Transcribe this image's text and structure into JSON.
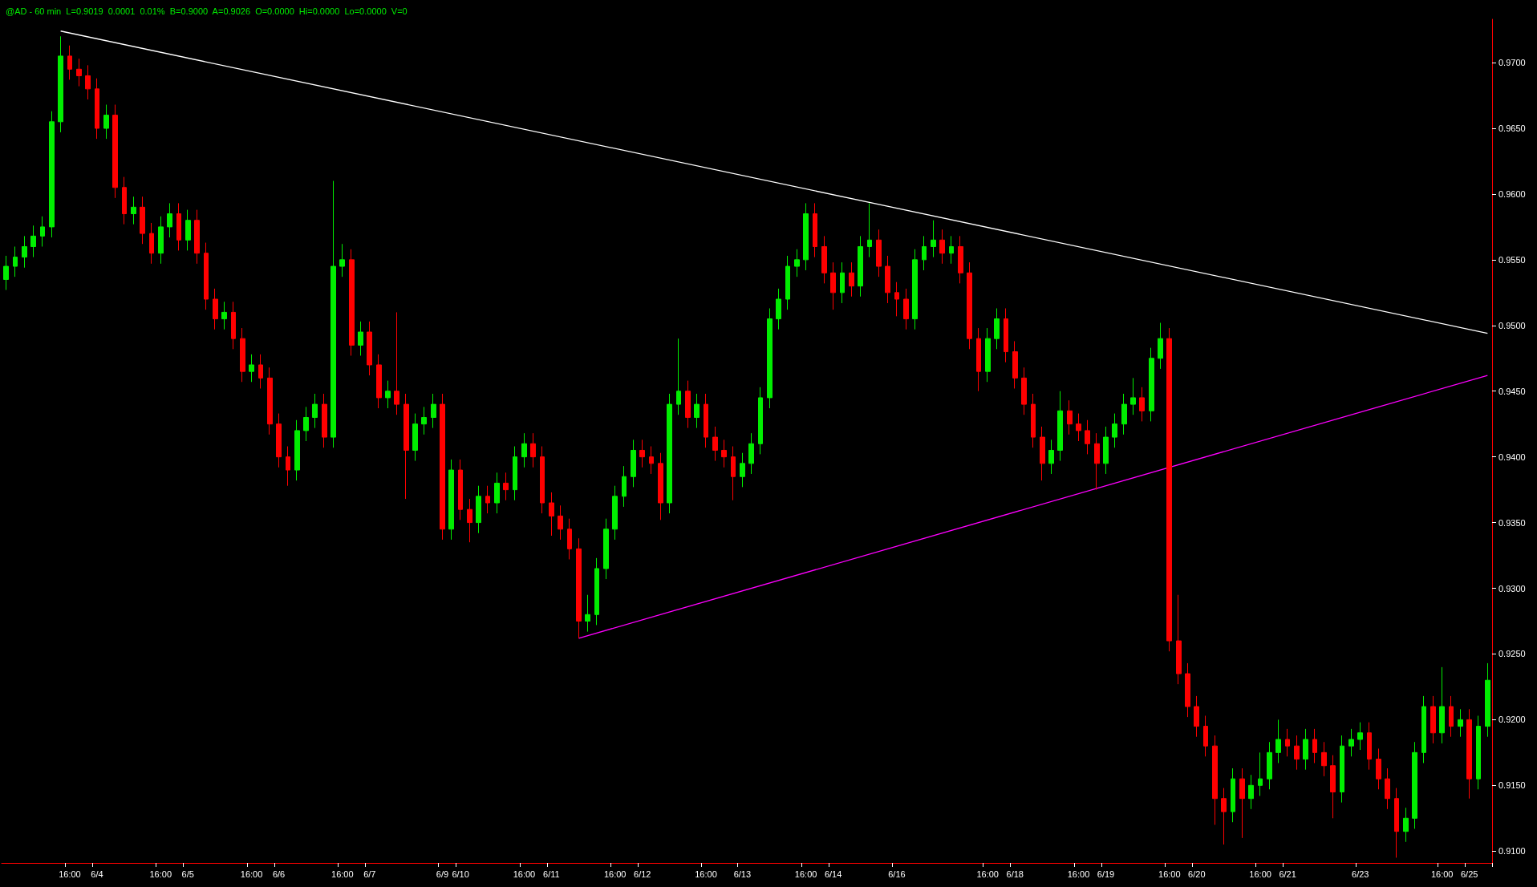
{
  "chart_data": {
    "type": "candlestick",
    "title": "@AD - 60 min  L=0.9019  0.0001  0.01%  B=0.9000  A=0.9026  O=0.0000  Hi=0.0000  Lo=0.0000  V=0",
    "categories": [
      null,
      null,
      null,
      null,
      null,
      null,
      null,
      "16:00",
      null,
      null,
      "6/4",
      null,
      null,
      null,
      null,
      null,
      null,
      "16:00",
      null,
      null,
      "6/5",
      null,
      null,
      null,
      null,
      null,
      null,
      "16:00",
      null,
      null,
      "6/6",
      null,
      null,
      null,
      null,
      null,
      null,
      "16:00",
      null,
      null,
      "6/7",
      null,
      null,
      null,
      null,
      null,
      null,
      null,
      "6/9",
      null,
      "6/10",
      null,
      null,
      null,
      null,
      null,
      null,
      "16:00",
      null,
      null,
      "6/11",
      null,
      null,
      null,
      null,
      null,
      null,
      "16:00",
      null,
      null,
      "6/12",
      null,
      null,
      null,
      null,
      null,
      null,
      "16:00",
      null,
      null,
      null,
      "6/13",
      null,
      null,
      null,
      null,
      null,
      null,
      "16:00",
      null,
      null,
      "6/14",
      null,
      null,
      null,
      null,
      null,
      null,
      "6/16",
      null,
      null,
      null,
      null,
      null,
      null,
      null,
      null,
      null,
      "16:00",
      null,
      null,
      "6/18",
      null,
      null,
      null,
      null,
      null,
      null,
      "16:00",
      null,
      null,
      "6/19",
      null,
      null,
      null,
      null,
      null,
      null,
      "16:00",
      null,
      null,
      "6/20",
      null,
      null,
      null,
      null,
      null,
      null,
      "16:00",
      null,
      null,
      "6/21",
      null,
      null,
      null,
      null,
      null,
      null,
      null,
      "6/23",
      null,
      null,
      null,
      null,
      null,
      null,
      null,
      null,
      "16:00",
      null,
      null,
      "6/25",
      null,
      null
    ],
    "ohlc": [
      [
        0.9535,
        0.9553,
        0.9527,
        0.9545
      ],
      [
        0.9545,
        0.956,
        0.9537,
        0.9552
      ],
      [
        0.9552,
        0.9568,
        0.9544,
        0.956
      ],
      [
        0.956,
        0.9576,
        0.9552,
        0.9568
      ],
      [
        0.9568,
        0.9583,
        0.956,
        0.9575
      ],
      [
        0.9575,
        0.9663,
        0.9567,
        0.9655
      ],
      [
        0.9655,
        0.972,
        0.9647,
        0.9705
      ],
      [
        0.9705,
        0.9713,
        0.9687,
        0.9695
      ],
      [
        0.9695,
        0.9703,
        0.9682,
        0.969
      ],
      [
        0.969,
        0.9698,
        0.9672,
        0.968
      ],
      [
        0.968,
        0.9688,
        0.9642,
        0.965
      ],
      [
        0.965,
        0.9668,
        0.9642,
        0.966
      ],
      [
        0.966,
        0.9668,
        0.9597,
        0.9605
      ],
      [
        0.9605,
        0.9613,
        0.9577,
        0.9585
      ],
      [
        0.9585,
        0.9598,
        0.9577,
        0.959
      ],
      [
        0.959,
        0.9598,
        0.9562,
        0.957
      ],
      [
        0.957,
        0.9578,
        0.9547,
        0.9555
      ],
      [
        0.9555,
        0.9583,
        0.9547,
        0.9575
      ],
      [
        0.9575,
        0.9593,
        0.9567,
        0.9585
      ],
      [
        0.9585,
        0.9593,
        0.9557,
        0.9565
      ],
      [
        0.9565,
        0.9588,
        0.9557,
        0.958
      ],
      [
        0.958,
        0.9588,
        0.9547,
        0.9555
      ],
      [
        0.9555,
        0.9563,
        0.9512,
        0.952
      ],
      [
        0.952,
        0.9528,
        0.9497,
        0.9505
      ],
      [
        0.9505,
        0.9518,
        0.9497,
        0.951
      ],
      [
        0.951,
        0.9518,
        0.9482,
        0.949
      ],
      [
        0.949,
        0.9498,
        0.9457,
        0.9465
      ],
      [
        0.9465,
        0.9478,
        0.9457,
        0.947
      ],
      [
        0.947,
        0.9478,
        0.9452,
        0.946
      ],
      [
        0.946,
        0.9468,
        0.9417,
        0.9425
      ],
      [
        0.9425,
        0.9433,
        0.9392,
        0.94
      ],
      [
        0.94,
        0.9408,
        0.9378,
        0.939
      ],
      [
        0.939,
        0.9428,
        0.9382,
        0.942
      ],
      [
        0.942,
        0.9438,
        0.9412,
        0.943
      ],
      [
        0.943,
        0.9448,
        0.9422,
        0.944
      ],
      [
        0.944,
        0.9448,
        0.9407,
        0.9415
      ],
      [
        0.9415,
        0.961,
        0.9407,
        0.9545
      ],
      [
        0.9545,
        0.9562,
        0.9537,
        0.955
      ],
      [
        0.955,
        0.9558,
        0.9477,
        0.9485
      ],
      [
        0.9485,
        0.9503,
        0.9477,
        0.9495
      ],
      [
        0.9495,
        0.9503,
        0.9462,
        0.947
      ],
      [
        0.947,
        0.9478,
        0.9437,
        0.9445
      ],
      [
        0.9445,
        0.9458,
        0.9437,
        0.945
      ],
      [
        0.945,
        0.951,
        0.9432,
        0.944
      ],
      [
        0.944,
        0.9448,
        0.9368,
        0.9405
      ],
      [
        0.9405,
        0.9433,
        0.9397,
        0.9425
      ],
      [
        0.9425,
        0.9438,
        0.9417,
        0.943
      ],
      [
        0.943,
        0.9448,
        0.9422,
        0.944
      ],
      [
        0.944,
        0.9448,
        0.9337,
        0.9345
      ],
      [
        0.9345,
        0.9398,
        0.9337,
        0.939
      ],
      [
        0.939,
        0.9398,
        0.9352,
        0.936
      ],
      [
        0.936,
        0.9368,
        0.9335,
        0.935
      ],
      [
        0.935,
        0.9378,
        0.9342,
        0.937
      ],
      [
        0.937,
        0.9378,
        0.9357,
        0.9365
      ],
      [
        0.9365,
        0.9388,
        0.9357,
        0.938
      ],
      [
        0.938,
        0.9388,
        0.9367,
        0.9375
      ],
      [
        0.9375,
        0.9408,
        0.9367,
        0.94
      ],
      [
        0.94,
        0.9418,
        0.9392,
        0.941
      ],
      [
        0.941,
        0.9418,
        0.9392,
        0.94
      ],
      [
        0.94,
        0.9408,
        0.9357,
        0.9365
      ],
      [
        0.9365,
        0.9373,
        0.934,
        0.9355
      ],
      [
        0.9355,
        0.9363,
        0.9337,
        0.9345
      ],
      [
        0.9345,
        0.9353,
        0.9322,
        0.933
      ],
      [
        0.933,
        0.9338,
        0.9262,
        0.9275
      ],
      [
        0.9275,
        0.9295,
        0.9267,
        0.928
      ],
      [
        0.928,
        0.9323,
        0.9272,
        0.9315
      ],
      [
        0.9315,
        0.9353,
        0.9307,
        0.9345
      ],
      [
        0.9345,
        0.9378,
        0.9337,
        0.937
      ],
      [
        0.937,
        0.9393,
        0.9362,
        0.9385
      ],
      [
        0.9385,
        0.9413,
        0.9377,
        0.9405
      ],
      [
        0.9405,
        0.9413,
        0.9392,
        0.94
      ],
      [
        0.94,
        0.9408,
        0.9387,
        0.9395
      ],
      [
        0.9395,
        0.9403,
        0.9352,
        0.9365
      ],
      [
        0.9365,
        0.9448,
        0.9357,
        0.944
      ],
      [
        0.944,
        0.949,
        0.9432,
        0.945
      ],
      [
        0.945,
        0.9458,
        0.9422,
        0.943
      ],
      [
        0.943,
        0.9448,
        0.9422,
        0.944
      ],
      [
        0.944,
        0.9448,
        0.9407,
        0.9415
      ],
      [
        0.9415,
        0.9423,
        0.9397,
        0.9405
      ],
      [
        0.9405,
        0.9413,
        0.9392,
        0.94
      ],
      [
        0.94,
        0.9408,
        0.9367,
        0.9385
      ],
      [
        0.9385,
        0.9403,
        0.9377,
        0.9395
      ],
      [
        0.9395,
        0.9418,
        0.9387,
        0.941
      ],
      [
        0.941,
        0.9453,
        0.9402,
        0.9445
      ],
      [
        0.9445,
        0.9513,
        0.9437,
        0.9505
      ],
      [
        0.9505,
        0.9528,
        0.9497,
        0.952
      ],
      [
        0.952,
        0.9553,
        0.9512,
        0.9545
      ],
      [
        0.9545,
        0.9558,
        0.9537,
        0.955
      ],
      [
        0.955,
        0.9593,
        0.9542,
        0.9585
      ],
      [
        0.9585,
        0.9593,
        0.9552,
        0.956
      ],
      [
        0.956,
        0.9568,
        0.9532,
        0.954
      ],
      [
        0.954,
        0.9548,
        0.9512,
        0.9525
      ],
      [
        0.9525,
        0.9548,
        0.9517,
        0.954
      ],
      [
        0.954,
        0.9548,
        0.9522,
        0.953
      ],
      [
        0.953,
        0.9568,
        0.9522,
        0.956
      ],
      [
        0.956,
        0.9593,
        0.9552,
        0.9565
      ],
      [
        0.9565,
        0.9573,
        0.9537,
        0.9545
      ],
      [
        0.9545,
        0.9553,
        0.9517,
        0.9525
      ],
      [
        0.9525,
        0.9533,
        0.9507,
        0.952
      ],
      [
        0.952,
        0.9528,
        0.9497,
        0.9505
      ],
      [
        0.9505,
        0.9558,
        0.9497,
        0.955
      ],
      [
        0.955,
        0.9568,
        0.9542,
        0.956
      ],
      [
        0.956,
        0.958,
        0.9552,
        0.9565
      ],
      [
        0.9565,
        0.9573,
        0.9547,
        0.9555
      ],
      [
        0.9555,
        0.9568,
        0.9547,
        0.956
      ],
      [
        0.956,
        0.9568,
        0.9532,
        0.954
      ],
      [
        0.954,
        0.9548,
        0.9482,
        0.949
      ],
      [
        0.949,
        0.9498,
        0.945,
        0.9465
      ],
      [
        0.9465,
        0.9498,
        0.9457,
        0.949
      ],
      [
        0.949,
        0.9513,
        0.9482,
        0.9505
      ],
      [
        0.9505,
        0.9513,
        0.9472,
        0.948
      ],
      [
        0.948,
        0.9488,
        0.9452,
        0.946
      ],
      [
        0.946,
        0.9468,
        0.9432,
        0.944
      ],
      [
        0.944,
        0.9448,
        0.9407,
        0.9415
      ],
      [
        0.9415,
        0.9423,
        0.9382,
        0.9395
      ],
      [
        0.9395,
        0.9413,
        0.9387,
        0.9405
      ],
      [
        0.9405,
        0.945,
        0.9397,
        0.9435
      ],
      [
        0.9435,
        0.9443,
        0.9417,
        0.9425
      ],
      [
        0.9425,
        0.9433,
        0.9412,
        0.942
      ],
      [
        0.942,
        0.9428,
        0.9402,
        0.941
      ],
      [
        0.941,
        0.9418,
        0.9375,
        0.9395
      ],
      [
        0.9395,
        0.9423,
        0.9387,
        0.9415
      ],
      [
        0.9415,
        0.9433,
        0.9407,
        0.9425
      ],
      [
        0.9425,
        0.9448,
        0.9417,
        0.944
      ],
      [
        0.944,
        0.946,
        0.9432,
        0.9445
      ],
      [
        0.9445,
        0.9453,
        0.9427,
        0.9435
      ],
      [
        0.9435,
        0.9483,
        0.9427,
        0.9475
      ],
      [
        0.9475,
        0.9502,
        0.9467,
        0.949
      ],
      [
        0.949,
        0.9498,
        0.9252,
        0.926
      ],
      [
        0.926,
        0.9295,
        0.9227,
        0.9235
      ],
      [
        0.9235,
        0.9243,
        0.9202,
        0.921
      ],
      [
        0.921,
        0.9218,
        0.9187,
        0.9195
      ],
      [
        0.9195,
        0.9203,
        0.9172,
        0.918
      ],
      [
        0.918,
        0.9188,
        0.912,
        0.914
      ],
      [
        0.914,
        0.9148,
        0.9105,
        0.913
      ],
      [
        0.913,
        0.9163,
        0.9122,
        0.9155
      ],
      [
        0.9155,
        0.9163,
        0.911,
        0.914
      ],
      [
        0.914,
        0.9158,
        0.9132,
        0.915
      ],
      [
        0.915,
        0.9175,
        0.9142,
        0.9155
      ],
      [
        0.9155,
        0.9183,
        0.9147,
        0.9175
      ],
      [
        0.9175,
        0.92,
        0.9167,
        0.9185
      ],
      [
        0.9185,
        0.9193,
        0.9172,
        0.918
      ],
      [
        0.918,
        0.9188,
        0.9162,
        0.917
      ],
      [
        0.917,
        0.9193,
        0.9162,
        0.9185
      ],
      [
        0.9185,
        0.9193,
        0.9167,
        0.9175
      ],
      [
        0.9175,
        0.9183,
        0.9157,
        0.9165
      ],
      [
        0.9165,
        0.9173,
        0.9125,
        0.9145
      ],
      [
        0.9145,
        0.9188,
        0.9137,
        0.918
      ],
      [
        0.918,
        0.9193,
        0.9172,
        0.9185
      ],
      [
        0.9185,
        0.9198,
        0.9177,
        0.919
      ],
      [
        0.919,
        0.9198,
        0.9162,
        0.917
      ],
      [
        0.917,
        0.9178,
        0.9147,
        0.9155
      ],
      [
        0.9155,
        0.9163,
        0.9132,
        0.914
      ],
      [
        0.914,
        0.9148,
        0.9095,
        0.9115
      ],
      [
        0.9115,
        0.9133,
        0.9107,
        0.9125
      ],
      [
        0.9125,
        0.9183,
        0.9117,
        0.9175
      ],
      [
        0.9175,
        0.9218,
        0.9167,
        0.921
      ],
      [
        0.921,
        0.9218,
        0.9182,
        0.919
      ],
      [
        0.919,
        0.924,
        0.9182,
        0.921
      ],
      [
        0.921,
        0.9218,
        0.9187,
        0.9195
      ],
      [
        0.9195,
        0.9208,
        0.9187,
        0.92
      ],
      [
        0.92,
        0.9208,
        0.914,
        0.9155
      ],
      [
        0.9155,
        0.9203,
        0.9147,
        0.9195
      ],
      [
        0.9195,
        0.9243,
        0.9187,
        0.923
      ]
    ],
    "series": [
      {
        "type": "line",
        "color": "#ffffff",
        "values": [
          null,
          null,
          null,
          null,
          null,
          null,
          0.9724,
          null,
          null,
          null,
          null,
          null,
          null,
          null,
          null,
          null,
          null,
          null,
          null,
          null,
          null,
          null,
          null,
          null,
          null,
          null,
          null,
          null,
          null,
          null,
          null,
          null,
          null,
          null,
          null,
          null,
          null,
          null,
          null,
          null,
          null,
          null,
          null,
          null,
          null,
          null,
          null,
          null,
          null,
          null,
          null,
          null,
          null,
          null,
          null,
          null,
          null,
          null,
          null,
          null,
          null,
          null,
          null,
          null,
          null,
          null,
          null,
          null,
          null,
          null,
          null,
          null,
          null,
          null,
          null,
          null,
          null,
          null,
          null,
          null,
          null,
          null,
          null,
          null,
          null,
          null,
          null,
          null,
          null,
          null,
          null,
          null,
          null,
          null,
          null,
          null,
          null,
          null,
          null,
          null,
          null,
          null,
          null,
          null,
          null,
          null,
          null,
          null,
          null,
          null,
          null,
          null,
          null,
          null,
          null,
          null,
          null,
          null,
          null,
          null,
          null,
          null,
          null,
          null,
          null,
          null,
          null,
          null,
          null,
          null,
          null,
          null,
          null,
          null,
          null,
          null,
          null,
          null,
          null,
          null,
          null,
          null,
          null,
          null,
          null,
          null,
          null,
          null,
          null,
          null,
          null,
          null,
          null,
          null,
          null,
          null,
          null,
          null,
          null,
          null,
          null,
          null,
          null,
          0.9494
        ]
      },
      {
        "type": "line",
        "color": "#ff00ff",
        "values": [
          null,
          null,
          null,
          null,
          null,
          null,
          null,
          null,
          null,
          null,
          null,
          null,
          null,
          null,
          null,
          null,
          null,
          null,
          null,
          null,
          null,
          null,
          null,
          null,
          null,
          null,
          null,
          null,
          null,
          null,
          null,
          null,
          null,
          null,
          null,
          null,
          null,
          null,
          null,
          null,
          null,
          null,
          null,
          null,
          null,
          null,
          null,
          null,
          null,
          null,
          null,
          null,
          null,
          null,
          null,
          null,
          null,
          null,
          null,
          null,
          null,
          null,
          null,
          0.9262,
          null,
          null,
          null,
          null,
          null,
          null,
          null,
          null,
          null,
          null,
          null,
          null,
          null,
          null,
          null,
          null,
          null,
          null,
          null,
          null,
          null,
          null,
          null,
          null,
          null,
          null,
          null,
          null,
          null,
          null,
          null,
          null,
          null,
          null,
          null,
          null,
          null,
          null,
          null,
          null,
          null,
          null,
          null,
          null,
          null,
          null,
          null,
          null,
          null,
          null,
          null,
          null,
          null,
          null,
          null,
          null,
          null,
          null,
          null,
          null,
          null,
          null,
          null,
          null,
          null,
          null,
          null,
          null,
          null,
          null,
          null,
          null,
          null,
          null,
          null,
          null,
          null,
          null,
          null,
          null,
          null,
          null,
          null,
          null,
          null,
          null,
          null,
          null,
          null,
          null,
          null,
          null,
          null,
          null,
          null,
          null,
          null,
          null,
          null,
          0.9462
        ]
      }
    ],
    "ylim": [
      0.9091,
      0.9733
    ],
    "yticks": [
      {
        "value": 0.91,
        "label": "0.9100"
      },
      {
        "value": 0.915,
        "label": "0.9150"
      },
      {
        "value": 0.92,
        "label": "0.9200"
      },
      {
        "value": 0.925,
        "label": "0.9250"
      },
      {
        "value": 0.93,
        "label": "0.9300"
      },
      {
        "value": 0.935,
        "label": "0.9350"
      },
      {
        "value": 0.94,
        "label": "0.9400"
      },
      {
        "value": 0.945,
        "label": "0.9450"
      },
      {
        "value": 0.95,
        "label": "0.9500"
      },
      {
        "value": 0.955,
        "label": "0.9550"
      },
      {
        "value": 0.96,
        "label": "0.9600"
      },
      {
        "value": 0.965,
        "label": "0.9650"
      },
      {
        "value": 0.97,
        "label": "0.9700"
      }
    ]
  }
}
